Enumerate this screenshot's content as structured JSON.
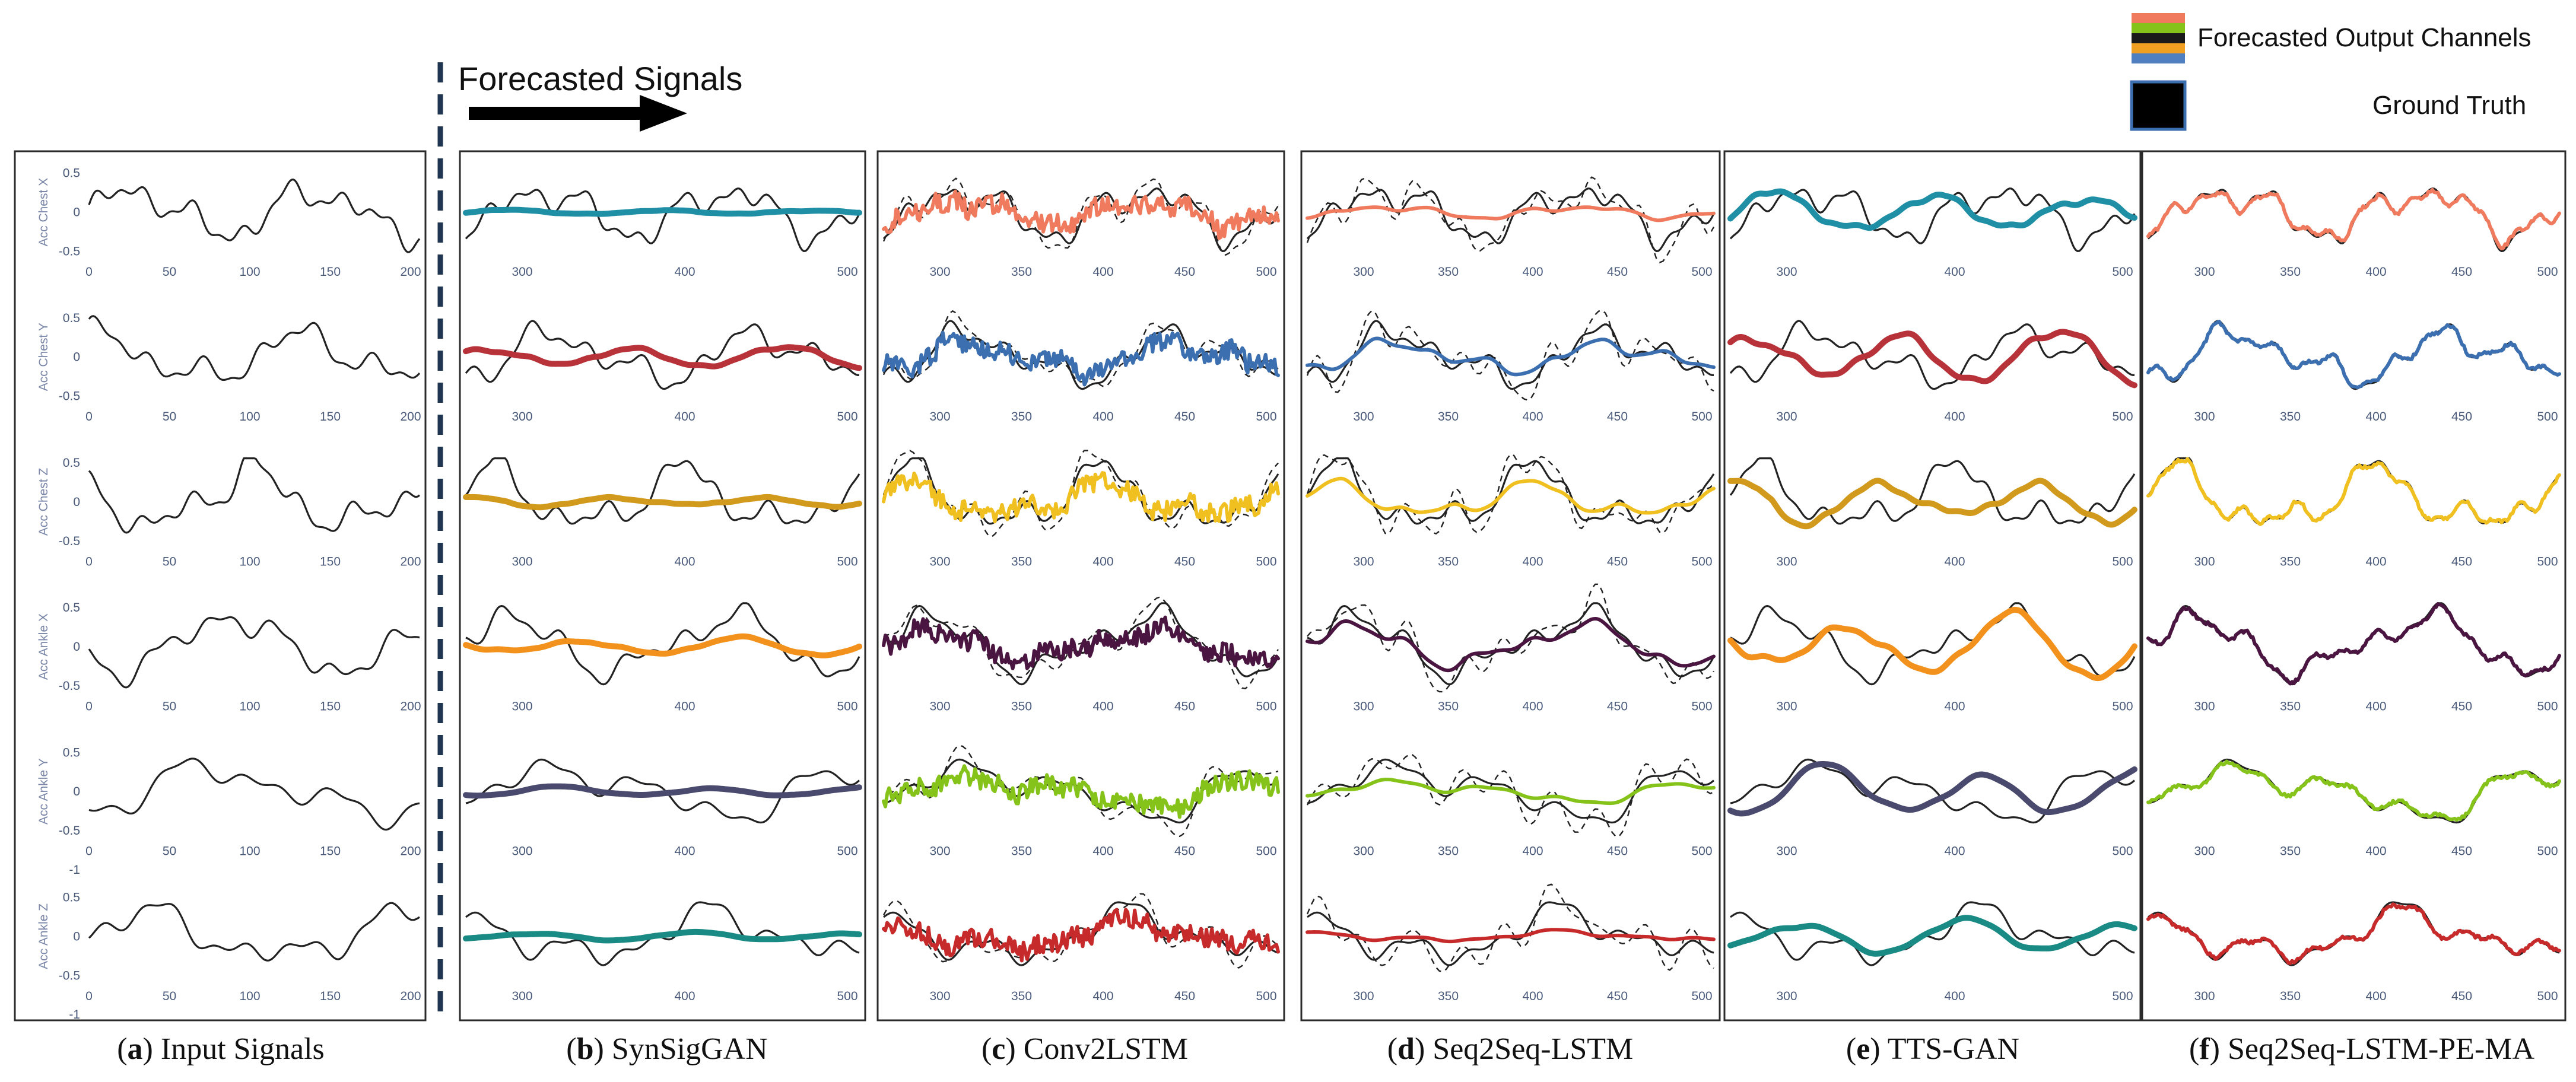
{
  "header": {
    "forecast_label": "Forecasted Signals"
  },
  "legend": {
    "forecast_label": "Forecasted Output Channels",
    "truth_label": "Ground Truth",
    "forecast_colors": [
      "#ef7a5d",
      "#3c6fb0",
      "#f0c020",
      "#4a1540"
    ],
    "truth_color": "#000000"
  },
  "chart_data": {
    "type": "line",
    "channels": [
      "Acc Chest X",
      "Acc Chest Y",
      "Acc Chest Z",
      "Acc Ankle X",
      "Acc Ankle Y",
      "Acc Ankle Z"
    ],
    "y_ticks": [
      [
        "0.5",
        "0",
        "-0.5"
      ],
      [
        "0.5",
        "0",
        "-0.5"
      ],
      [
        "0.5",
        "0",
        "-0.5"
      ],
      [
        "0.5",
        "0",
        "-0.5"
      ],
      [
        "0.5",
        "0",
        "-0.5",
        "-1"
      ],
      [
        "0.5",
        "0",
        "-0.5",
        "-1"
      ]
    ],
    "input_x_ticks": [
      "0",
      "50",
      "100",
      "150",
      "200"
    ],
    "panels": [
      {
        "letter": "a",
        "title": "Input Signals",
        "kind": "input",
        "x_ticks": [
          "0",
          "50",
          "100",
          "150",
          "200"
        ]
      },
      {
        "letter": "b",
        "title": "SynSigGAN",
        "kind": "thick",
        "x_ticks": [
          "300",
          "400",
          "500"
        ],
        "colors": [
          "#1f8fa6",
          "#b8323a",
          "#d19a1c",
          "#f2921c",
          "#4a4a6e",
          "#1a8a84"
        ],
        "amplitude": [
          0.08,
          0.35,
          0.18,
          0.25,
          0.15,
          0.12
        ]
      },
      {
        "letter": "c",
        "title": "Conv2LSTM",
        "kind": "noisy",
        "x_ticks": [
          "300",
          "350",
          "400",
          "450",
          "500"
        ],
        "colors": [
          "#ef7a5d",
          "#3c6fb0",
          "#f0c020",
          "#4a1540",
          "#86c31a",
          "#c62a2a"
        ],
        "amplitude": [
          0.5,
          0.6,
          0.55,
          0.5,
          0.55,
          0.55
        ]
      },
      {
        "letter": "d",
        "title": "Seq2Seq-LSTM",
        "kind": "smooth",
        "x_ticks": [
          "300",
          "350",
          "400",
          "450",
          "500"
        ],
        "colors": [
          "#ef7a5d",
          "#3c6fb0",
          "#f0c020",
          "#4a1540",
          "#86c31a",
          "#c62a2a"
        ],
        "amplitude": [
          0.25,
          0.6,
          0.55,
          0.7,
          0.4,
          0.2
        ]
      },
      {
        "letter": "e",
        "title": "TTS-GAN",
        "kind": "thick",
        "x_ticks": [
          "300",
          "400",
          "500"
        ],
        "colors": [
          "#1f8fa6",
          "#b8323a",
          "#d19a1c",
          "#f2921c",
          "#4a4a6e",
          "#1a8a84"
        ],
        "amplitude": [
          0.7,
          0.9,
          0.8,
          0.9,
          0.8,
          0.5
        ]
      },
      {
        "letter": "f",
        "title": "Seq2Seq-LSTM-PE-MA",
        "kind": "match",
        "x_ticks": [
          "300",
          "350",
          "400",
          "450",
          "500"
        ],
        "colors": [
          "#ef7a5d",
          "#3c6fb0",
          "#f0c020",
          "#4a1540",
          "#86c31a",
          "#c62a2a"
        ],
        "amplitude": [
          0.9,
          0.95,
          0.95,
          0.95,
          0.9,
          0.9
        ]
      }
    ]
  }
}
